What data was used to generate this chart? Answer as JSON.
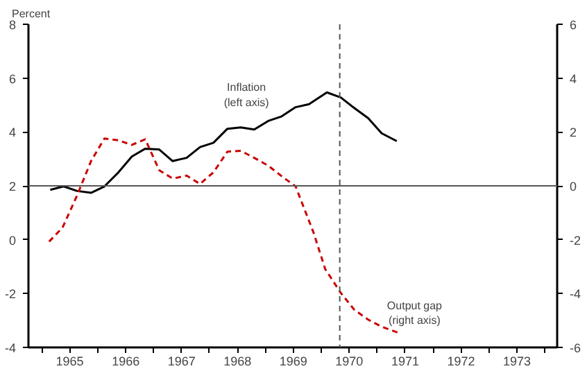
{
  "chart_data": {
    "type": "line",
    "ylabel": "Percent",
    "series": [
      {
        "name": "Inflation\n(left axis)",
        "color": "#000000",
        "line_style": "solid",
        "x": [
          1965.15,
          1965.39,
          1965.63,
          1965.88,
          1966.12,
          1966.37,
          1966.61,
          1966.85,
          1967.1,
          1967.34,
          1967.59,
          1967.83,
          1968.07,
          1968.32,
          1968.56,
          1968.8,
          1969.05,
          1969.29,
          1969.54,
          1969.78,
          1970.1,
          1970.35,
          1970.59,
          1970.84,
          1971.08,
          1971.35
        ],
        "values": [
          1.85,
          1.98,
          1.81,
          1.74,
          1.98,
          2.5,
          3.09,
          3.38,
          3.35,
          2.92,
          3.04,
          3.44,
          3.6,
          4.12,
          4.17,
          4.09,
          4.41,
          4.58,
          4.92,
          5.03,
          5.47,
          5.28,
          4.89,
          4.51,
          3.95,
          3.66
        ]
      },
      {
        "name": "Output gap\n(right axis)",
        "color": "#cc0000",
        "line_style": "dashed",
        "axis": "y2",
        "x": [
          1965.13,
          1965.37,
          1965.63,
          1965.88,
          1966.12,
          1966.37,
          1966.61,
          1966.85,
          1967.1,
          1967.34,
          1967.59,
          1967.83,
          1968.07,
          1968.32,
          1968.56,
          1968.8,
          1969.05,
          1969.29,
          1969.54,
          1969.86,
          1970.07,
          1970.35,
          1970.59,
          1970.84,
          1971.08,
          1971.37
        ],
        "values": [
          -2.07,
          -1.55,
          -0.36,
          0.92,
          1.76,
          1.69,
          1.52,
          1.73,
          0.58,
          0.27,
          0.38,
          0.07,
          0.5,
          1.27,
          1.3,
          1.04,
          0.75,
          0.36,
          -0.02,
          -1.73,
          -3.09,
          -3.98,
          -4.6,
          -4.97,
          -5.23,
          -5.45
        ]
      }
    ],
    "xlim": [
      1964.76,
      1974.22
    ],
    "xticks": [
      {
        "value": 1965,
        "label": null
      },
      {
        "value": 1966,
        "label": null
      },
      {
        "value": 1967,
        "label": null
      },
      {
        "value": 1968,
        "label": null
      },
      {
        "value": 1969,
        "label": null
      },
      {
        "value": 1970,
        "label": null
      },
      {
        "value": 1971,
        "label": null
      },
      {
        "value": 1972,
        "label": null
      },
      {
        "value": 1973,
        "label": null
      },
      {
        "value": 1974,
        "label": null
      },
      {
        "value": 1965.5,
        "label": "1965"
      },
      {
        "value": 1966.5,
        "label": "1966"
      },
      {
        "value": 1967.5,
        "label": "1967"
      },
      {
        "value": 1968.5,
        "label": "1968"
      },
      {
        "value": 1969.5,
        "label": "1969"
      },
      {
        "value": 1970.5,
        "label": "1970"
      },
      {
        "value": 1971.5,
        "label": "1971"
      },
      {
        "value": 1972.5,
        "label": "1972"
      },
      {
        "value": 1973.5,
        "label": "1973"
      }
    ],
    "ylim": [
      -4,
      8
    ],
    "yticks": [
      -4,
      -2,
      0,
      2,
      4,
      6,
      8
    ],
    "y2lim": [
      -6,
      6
    ],
    "y2ticks": [
      -6,
      -4,
      -2,
      0,
      2,
      4,
      6
    ],
    "ref_lines": [
      {
        "axis": "y",
        "value": 2,
        "color": "#555555",
        "line_style": "solid"
      },
      {
        "axis": "x",
        "value": 1970.33,
        "color": "#555555",
        "line_style": "dashed"
      }
    ],
    "grid": false,
    "marker": "none"
  }
}
